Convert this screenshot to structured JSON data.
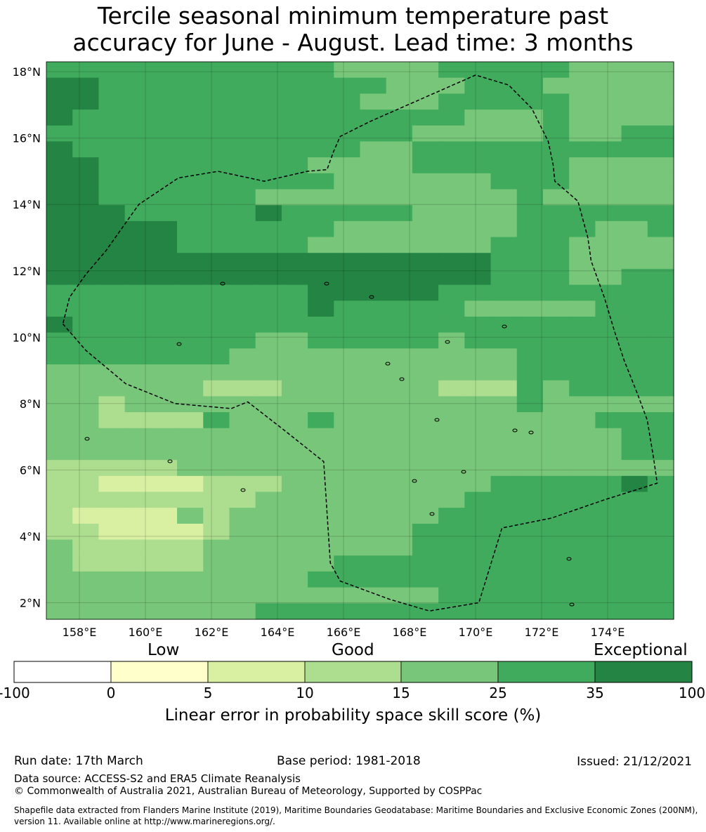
{
  "title": {
    "line1": "Tercile seasonal minimum temperature past",
    "line2": "accuracy for June - August. Lead time: 3 months"
  },
  "map": {
    "lat_labels": [
      "18°N",
      "16°N",
      "14°N",
      "12°N",
      "10°N",
      "8°N",
      "6°N",
      "4°N",
      "2°N"
    ],
    "lat_values": [
      18,
      16,
      14,
      12,
      10,
      8,
      6,
      4,
      2
    ],
    "lon_labels": [
      "158°E",
      "160°E",
      "162°E",
      "164°E",
      "166°E",
      "168°E",
      "170°E",
      "172°E",
      "174°E"
    ],
    "lon_values": [
      158,
      160,
      162,
      164,
      166,
      168,
      170,
      172,
      174
    ],
    "extent": {
      "lon_min": 157,
      "lon_max": 176,
      "lat_min": 1.5,
      "lat_max": 18.3
    },
    "grid_rows": [
      "333333333332222333332222",
      "443333333333322233322222",
      "443333333333222333332222",
      "433333333333333322232222",
      "333333333333332222232233",
      "433333333333223333333333",
      "443333333322223333332222",
      "443333333332222223332222",
      "443333332222222222322222",
      "444333334333332222333333",
      "444443333332222222333223",
      "444443333322222223332222",
      "444444444444444443332222",
      "444444444444444443332233",
      "333333333344444333333333",
      "333333333343333322222333",
      "433333333333333333333333",
      "333333332233333233333333",
      "333333322222222222333333",
      "222222222222222222333333",
      "222222111222222111323333",
      "221222222222222222322222",
      "221111322232222222222333",
      "222222222222222222222233",
      "222222222222222222222233",
      "111112222222222222222222",
      "110000111222222223333343",
      "111111112222222233333333",
      "100002122222222333333333",
      "110000122222223333333333",
      "211111222222223333333333",
      "211111222223333333333333",
      "222222222233333333333333",
      "222222222222222333333333",
      "222222223333333333333333"
    ],
    "eez_boundary": [
      [
        157.5,
        10.4
      ],
      [
        158.2,
        9.6
      ],
      [
        159.4,
        8.6
      ],
      [
        160.9,
        8.0
      ],
      [
        162.6,
        7.85
      ],
      [
        163.1,
        8.05
      ],
      [
        164.2,
        7.2
      ],
      [
        165.4,
        6.25
      ],
      [
        165.6,
        3.2
      ],
      [
        165.9,
        2.65
      ],
      [
        167.4,
        2.1
      ],
      [
        168.6,
        1.75
      ],
      [
        170.1,
        2.0
      ],
      [
        170.8,
        4.25
      ],
      [
        172.3,
        4.55
      ],
      [
        173.9,
        5.1
      ],
      [
        175.5,
        5.6
      ],
      [
        175.4,
        6.3
      ],
      [
        175.2,
        7.5
      ],
      [
        174.9,
        8.3
      ],
      [
        174.5,
        9.3
      ],
      [
        174.2,
        10.2
      ],
      [
        173.9,
        11.2
      ],
      [
        173.5,
        12.3
      ],
      [
        173.4,
        13.0
      ],
      [
        173.1,
        14.1
      ],
      [
        172.4,
        14.7
      ],
      [
        172.35,
        15.2
      ],
      [
        172.2,
        15.9
      ],
      [
        171.7,
        16.9
      ],
      [
        171.0,
        17.6
      ],
      [
        170.0,
        17.9
      ],
      [
        168.4,
        17.2
      ],
      [
        166.8,
        16.5
      ],
      [
        165.9,
        16.05
      ],
      [
        165.7,
        15.6
      ],
      [
        165.5,
        15.05
      ],
      [
        164.9,
        15.0
      ],
      [
        163.6,
        14.7
      ],
      [
        162.2,
        15.0
      ],
      [
        161.0,
        14.8
      ],
      [
        159.8,
        14.0
      ],
      [
        158.8,
        12.6
      ],
      [
        158.2,
        11.9
      ],
      [
        157.7,
        11.2
      ],
      [
        157.5,
        10.4
      ]
    ]
  },
  "colorbar": {
    "category_low": "Low",
    "category_good": "Good",
    "category_exceptional": "Exceptional",
    "ticks": [
      "-100",
      "0",
      "5",
      "10",
      "15",
      "25",
      "35",
      "100"
    ],
    "colors": [
      "#ffffff",
      "#ffffcc",
      "#d9f0a3",
      "#addd8e",
      "#78c679",
      "#41ab5d",
      "#238443"
    ],
    "label": "Linear error in probability space skill score (%)"
  },
  "footer": {
    "run_date": "Run date: 17th March",
    "base_period": "Base period: 1981-2018",
    "issued": "Issued: 21/12/2021",
    "data_source": "Data source: ACCESS-S2 and ERA5 Climate Reanalysis",
    "copyright": "© Commonwealth of Australia 2021, Australian Bureau of Meteorology, Supported by COSPPac",
    "shapefile_line1": "Shapefile data extracted from Flanders Marine Institute (2019), Maritime Boundaries Geodatabase: Maritime Boundaries and Exclusive Economic Zones (200NM),",
    "shapefile_line2": "version 11. Available online at http://www.marineregions.org/."
  }
}
